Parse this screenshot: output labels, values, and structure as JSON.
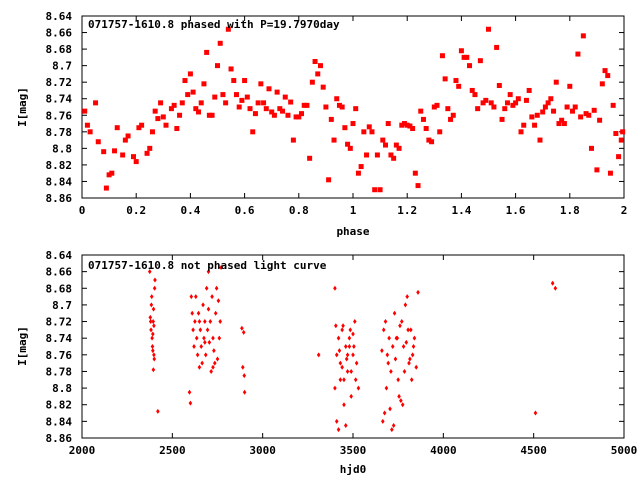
{
  "colors": {
    "points": "#ff0000",
    "frame": "#000000",
    "background": "#ffffff"
  },
  "chart_data": [
    {
      "type": "scatter",
      "title": "071757-1610.8 phased with P=19.7970day",
      "xlabel": "phase",
      "ylabel": "I[mag]",
      "xlim": [
        0,
        2
      ],
      "ylim": [
        8.86,
        8.64
      ],
      "y_inverted": true,
      "grid": false,
      "marker": "filled-square",
      "x_ticks": [
        0,
        0.2,
        0.4,
        0.6,
        0.8,
        1,
        1.2,
        1.4,
        1.6,
        1.8,
        2
      ],
      "x_tick_labels": [
        "0",
        "0.2",
        "0.4",
        "0.6",
        "0.8",
        "1",
        "1.2",
        "1.4",
        "1.6",
        "1.8",
        "2"
      ],
      "y_ticks": [
        8.64,
        8.66,
        8.68,
        8.7,
        8.72,
        8.74,
        8.76,
        8.78,
        8.8,
        8.82,
        8.84,
        8.86
      ],
      "y_tick_labels": [
        "8.64",
        "8.66",
        "8.68",
        "8.7",
        "8.72",
        "8.74",
        "8.76",
        "8.78",
        "8.8",
        "8.82",
        "8.84",
        "8.86"
      ],
      "points": [
        [
          0.01,
          8.755
        ],
        [
          0.02,
          8.772
        ],
        [
          0.03,
          8.78
        ],
        [
          0.05,
          8.745
        ],
        [
          0.06,
          8.792
        ],
        [
          0.08,
          8.804
        ],
        [
          0.09,
          8.848
        ],
        [
          0.1,
          8.832
        ],
        [
          0.11,
          8.83
        ],
        [
          0.12,
          8.803
        ],
        [
          0.13,
          8.775
        ],
        [
          0.15,
          8.808
        ],
        [
          0.16,
          8.79
        ],
        [
          0.17,
          8.785
        ],
        [
          0.19,
          8.81
        ],
        [
          0.2,
          8.816
        ],
        [
          0.21,
          8.775
        ],
        [
          0.22,
          8.772
        ],
        [
          0.24,
          8.806
        ],
        [
          0.25,
          8.8
        ],
        [
          0.26,
          8.78
        ],
        [
          0.27,
          8.755
        ],
        [
          0.28,
          8.764
        ],
        [
          0.29,
          8.745
        ],
        [
          0.3,
          8.762
        ],
        [
          0.31,
          8.772
        ],
        [
          0.33,
          8.752
        ],
        [
          0.34,
          8.748
        ],
        [
          0.35,
          8.776
        ],
        [
          0.36,
          8.76
        ],
        [
          0.37,
          8.745
        ],
        [
          0.38,
          8.718
        ],
        [
          0.39,
          8.735
        ],
        [
          0.4,
          8.71
        ],
        [
          0.41,
          8.732
        ],
        [
          0.42,
          8.752
        ],
        [
          0.43,
          8.756
        ],
        [
          0.44,
          8.745
        ],
        [
          0.45,
          8.722
        ],
        [
          0.46,
          8.684
        ],
        [
          0.47,
          8.76
        ],
        [
          0.48,
          8.76
        ],
        [
          0.49,
          8.738
        ],
        [
          0.5,
          8.7
        ],
        [
          0.51,
          8.673
        ],
        [
          0.52,
          8.735
        ],
        [
          0.53,
          8.745
        ],
        [
          0.54,
          8.656
        ],
        [
          0.55,
          8.704
        ],
        [
          0.56,
          8.718
        ],
        [
          0.57,
          8.735
        ],
        [
          0.58,
          8.75
        ],
        [
          0.59,
          8.742
        ],
        [
          0.6,
          8.718
        ],
        [
          0.61,
          8.738
        ],
        [
          0.62,
          8.752
        ],
        [
          0.63,
          8.78
        ],
        [
          0.64,
          8.758
        ],
        [
          0.65,
          8.745
        ],
        [
          0.66,
          8.722
        ],
        [
          0.67,
          8.745
        ],
        [
          0.68,
          8.752
        ],
        [
          0.69,
          8.728
        ],
        [
          0.7,
          8.756
        ],
        [
          0.71,
          8.76
        ],
        [
          0.72,
          8.732
        ],
        [
          0.73,
          8.752
        ],
        [
          0.74,
          8.755
        ],
        [
          0.75,
          8.738
        ],
        [
          0.76,
          8.76
        ],
        [
          0.77,
          8.744
        ],
        [
          0.78,
          8.79
        ],
        [
          0.79,
          8.762
        ],
        [
          0.8,
          8.762
        ],
        [
          0.81,
          8.758
        ],
        [
          0.82,
          8.748
        ],
        [
          0.83,
          8.748
        ],
        [
          0.84,
          8.812
        ],
        [
          0.85,
          8.72
        ],
        [
          0.86,
          8.695
        ],
        [
          0.87,
          8.71
        ],
        [
          0.88,
          8.7
        ],
        [
          0.89,
          8.726
        ],
        [
          0.9,
          8.75
        ],
        [
          0.91,
          8.838
        ],
        [
          0.92,
          8.765
        ],
        [
          0.93,
          8.79
        ],
        [
          0.94,
          8.74
        ],
        [
          0.95,
          8.748
        ],
        [
          0.96,
          8.75
        ],
        [
          0.97,
          8.775
        ],
        [
          0.98,
          8.795
        ],
        [
          0.99,
          8.8
        ],
        [
          1.0,
          8.77
        ],
        [
          1.01,
          8.752
        ],
        [
          1.02,
          8.83
        ],
        [
          1.03,
          8.822
        ],
        [
          1.04,
          8.78
        ],
        [
          1.05,
          8.808
        ],
        [
          1.06,
          8.774
        ],
        [
          1.07,
          8.78
        ],
        [
          1.08,
          8.85
        ],
        [
          1.09,
          8.808
        ],
        [
          1.1,
          8.85
        ],
        [
          1.11,
          8.79
        ],
        [
          1.12,
          8.796
        ],
        [
          1.13,
          8.77
        ],
        [
          1.14,
          8.808
        ],
        [
          1.15,
          8.812
        ],
        [
          1.16,
          8.796
        ],
        [
          1.17,
          8.8
        ],
        [
          1.18,
          8.772
        ],
        [
          1.19,
          8.77
        ],
        [
          1.2,
          8.772
        ],
        [
          1.21,
          8.773
        ],
        [
          1.22,
          8.776
        ],
        [
          1.23,
          8.83
        ],
        [
          1.24,
          8.845
        ],
        [
          1.25,
          8.755
        ],
        [
          1.26,
          8.765
        ],
        [
          1.27,
          8.776
        ],
        [
          1.28,
          8.79
        ],
        [
          1.29,
          8.792
        ],
        [
          1.3,
          8.75
        ],
        [
          1.31,
          8.748
        ],
        [
          1.32,
          8.78
        ],
        [
          1.33,
          8.688
        ],
        [
          1.34,
          8.716
        ],
        [
          1.35,
          8.752
        ],
        [
          1.36,
          8.765
        ],
        [
          1.37,
          8.76
        ],
        [
          1.38,
          8.718
        ],
        [
          1.39,
          8.725
        ],
        [
          1.4,
          8.682
        ],
        [
          1.41,
          8.69
        ],
        [
          1.42,
          8.69
        ],
        [
          1.43,
          8.7
        ],
        [
          1.44,
          8.73
        ],
        [
          1.45,
          8.735
        ],
        [
          1.46,
          8.752
        ],
        [
          1.47,
          8.694
        ],
        [
          1.48,
          8.745
        ],
        [
          1.49,
          8.742
        ],
        [
          1.5,
          8.656
        ],
        [
          1.51,
          8.745
        ],
        [
          1.52,
          8.75
        ],
        [
          1.53,
          8.678
        ],
        [
          1.54,
          8.724
        ],
        [
          1.55,
          8.765
        ],
        [
          1.56,
          8.752
        ],
        [
          1.57,
          8.745
        ],
        [
          1.58,
          8.735
        ],
        [
          1.59,
          8.748
        ],
        [
          1.6,
          8.745
        ],
        [
          1.61,
          8.74
        ],
        [
          1.62,
          8.78
        ],
        [
          1.63,
          8.772
        ],
        [
          1.64,
          8.742
        ],
        [
          1.65,
          8.73
        ],
        [
          1.66,
          8.762
        ],
        [
          1.67,
          8.772
        ],
        [
          1.68,
          8.76
        ],
        [
          1.69,
          8.79
        ],
        [
          1.7,
          8.756
        ],
        [
          1.71,
          8.75
        ],
        [
          1.72,
          8.745
        ],
        [
          1.73,
          8.74
        ],
        [
          1.74,
          8.755
        ],
        [
          1.75,
          8.72
        ],
        [
          1.76,
          8.77
        ],
        [
          1.77,
          8.766
        ],
        [
          1.78,
          8.77
        ],
        [
          1.79,
          8.75
        ],
        [
          1.8,
          8.725
        ],
        [
          1.81,
          8.755
        ],
        [
          1.82,
          8.75
        ],
        [
          1.83,
          8.686
        ],
        [
          1.84,
          8.762
        ],
        [
          1.85,
          8.664
        ],
        [
          1.86,
          8.758
        ],
        [
          1.87,
          8.76
        ],
        [
          1.88,
          8.8
        ],
        [
          1.89,
          8.754
        ],
        [
          1.9,
          8.826
        ],
        [
          1.91,
          8.766
        ],
        [
          1.92,
          8.722
        ],
        [
          1.93,
          8.706
        ],
        [
          1.94,
          8.712
        ],
        [
          1.95,
          8.83
        ],
        [
          1.96,
          8.748
        ],
        [
          1.97,
          8.782
        ],
        [
          1.98,
          8.81
        ],
        [
          1.99,
          8.79
        ],
        [
          1.995,
          8.78
        ]
      ]
    },
    {
      "type": "scatter",
      "title": "071757-1610.8 not phased light curve",
      "xlabel": "hjd0",
      "ylabel": "I[mag]",
      "xlim": [
        2000,
        5000
      ],
      "ylim": [
        8.86,
        8.64
      ],
      "y_inverted": true,
      "grid": false,
      "marker": "small-diamond",
      "x_ticks": [
        2000,
        2500,
        3000,
        3500,
        4000,
        4500,
        5000
      ],
      "x_tick_labels": [
        "2000",
        "2500",
        "3000",
        "3500",
        "4000",
        "4500",
        "5000"
      ],
      "y_ticks": [
        8.64,
        8.66,
        8.68,
        8.7,
        8.72,
        8.74,
        8.76,
        8.78,
        8.8,
        8.82,
        8.84,
        8.86
      ],
      "y_tick_labels": [
        "8.64",
        "8.66",
        "8.68",
        "8.7",
        "8.72",
        "8.74",
        "8.76",
        "8.78",
        "8.8",
        "8.82",
        "8.84",
        "8.86"
      ],
      "points": [
        [
          2375,
          8.66
        ],
        [
          2378,
          8.715
        ],
        [
          2380,
          8.72
        ],
        [
          2382,
          8.73
        ],
        [
          2384,
          8.7
        ],
        [
          2386,
          8.69
        ],
        [
          2388,
          8.74
        ],
        [
          2390,
          8.75
        ],
        [
          2392,
          8.755
        ],
        [
          2394,
          8.72
        ],
        [
          2396,
          8.705
        ],
        [
          2398,
          8.76
        ],
        [
          2400,
          8.765
        ],
        [
          2402,
          8.68
        ],
        [
          2404,
          8.67
        ],
        [
          2395,
          8.778
        ],
        [
          2392,
          8.735
        ],
        [
          2398,
          8.725
        ],
        [
          2420,
          8.828
        ],
        [
          2595,
          8.805
        ],
        [
          2600,
          8.818
        ],
        [
          2605,
          8.69
        ],
        [
          2610,
          8.71
        ],
        [
          2615,
          8.73
        ],
        [
          2620,
          8.75
        ],
        [
          2625,
          8.72
        ],
        [
          2630,
          8.69
        ],
        [
          2635,
          8.74
        ],
        [
          2640,
          8.76
        ],
        [
          2645,
          8.71
        ],
        [
          2650,
          8.72
        ],
        [
          2655,
          8.73
        ],
        [
          2660,
          8.75
        ],
        [
          2665,
          8.77
        ],
        [
          2670,
          8.7
        ],
        [
          2675,
          8.74
        ],
        [
          2680,
          8.72
        ],
        [
          2685,
          8.76
        ],
        [
          2690,
          8.68
        ],
        [
          2695,
          8.73
        ],
        [
          2700,
          8.66
        ],
        [
          2705,
          8.745
        ],
        [
          2710,
          8.72
        ],
        [
          2715,
          8.78
        ],
        [
          2720,
          8.69
        ],
        [
          2725,
          8.74
        ],
        [
          2730,
          8.755
        ],
        [
          2735,
          8.77
        ],
        [
          2740,
          8.71
        ],
        [
          2745,
          8.68
        ],
        [
          2750,
          8.765
        ],
        [
          2755,
          8.695
        ],
        [
          2760,
          8.74
        ],
        [
          2765,
          8.72
        ],
        [
          2770,
          8.655
        ],
        [
          2650,
          8.775
        ],
        [
          2680,
          8.745
        ],
        [
          2700,
          8.705
        ],
        [
          2725,
          8.775
        ],
        [
          2885,
          8.728
        ],
        [
          2890,
          8.775
        ],
        [
          2895,
          8.733
        ],
        [
          2898,
          8.785
        ],
        [
          2900,
          8.805
        ],
        [
          3310,
          8.76
        ],
        [
          3400,
          8.68
        ],
        [
          3410,
          8.76
        ],
        [
          3420,
          8.74
        ],
        [
          3430,
          8.77
        ],
        [
          3440,
          8.73
        ],
        [
          3450,
          8.79
        ],
        [
          3460,
          8.75
        ],
        [
          3470,
          8.78
        ],
        [
          3480,
          8.74
        ],
        [
          3490,
          8.81
        ],
        [
          3500,
          8.76
        ],
        [
          3510,
          8.72
        ],
        [
          3520,
          8.77
        ],
        [
          3530,
          8.8
        ],
        [
          3400,
          8.8
        ],
        [
          3410,
          8.84
        ],
        [
          3420,
          8.85
        ],
        [
          3430,
          8.79
        ],
        [
          3440,
          8.775
        ],
        [
          3450,
          8.82
        ],
        [
          3460,
          8.845
        ],
        [
          3470,
          8.76
        ],
        [
          3480,
          8.75
        ],
        [
          3490,
          8.78
        ],
        [
          3500,
          8.735
        ],
        [
          3405,
          8.725
        ],
        [
          3425,
          8.755
        ],
        [
          3445,
          8.725
        ],
        [
          3465,
          8.765
        ],
        [
          3485,
          8.73
        ],
        [
          3505,
          8.75
        ],
        [
          3515,
          8.79
        ],
        [
          3660,
          8.755
        ],
        [
          3670,
          8.73
        ],
        [
          3680,
          8.72
        ],
        [
          3690,
          8.76
        ],
        [
          3700,
          8.74
        ],
        [
          3710,
          8.78
        ],
        [
          3720,
          8.75
        ],
        [
          3730,
          8.71
        ],
        [
          3740,
          8.74
        ],
        [
          3750,
          8.79
        ],
        [
          3760,
          8.725
        ],
        [
          3770,
          8.72
        ],
        [
          3780,
          8.75
        ],
        [
          3790,
          8.7
        ],
        [
          3800,
          8.69
        ],
        [
          3810,
          8.77
        ],
        [
          3820,
          8.73
        ],
        [
          3830,
          8.76
        ],
        [
          3840,
          8.74
        ],
        [
          3850,
          8.775
        ],
        [
          3860,
          8.685
        ],
        [
          3665,
          8.84
        ],
        [
          3675,
          8.83
        ],
        [
          3685,
          8.8
        ],
        [
          3695,
          8.77
        ],
        [
          3705,
          8.825
        ],
        [
          3715,
          8.85
        ],
        [
          3725,
          8.845
        ],
        [
          3735,
          8.765
        ],
        [
          3745,
          8.74
        ],
        [
          3755,
          8.81
        ],
        [
          3765,
          8.815
        ],
        [
          3775,
          8.82
        ],
        [
          3785,
          8.78
        ],
        [
          3795,
          8.745
        ],
        [
          3805,
          8.73
        ],
        [
          3815,
          8.765
        ],
        [
          3825,
          8.79
        ],
        [
          3835,
          8.75
        ],
        [
          4510,
          8.83
        ],
        [
          4605,
          8.674
        ],
        [
          4620,
          8.68
        ]
      ]
    }
  ]
}
